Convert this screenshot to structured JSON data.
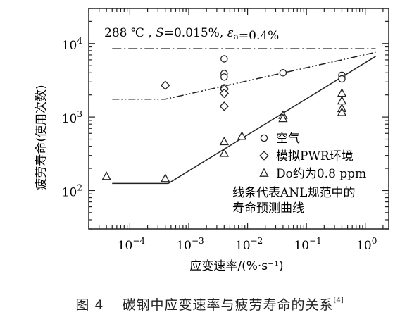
{
  "chart_data": {
    "type": "scatter",
    "annotation": "288 ℃ , S=0.015%, εa=0.4%",
    "xlabel": "应变速率/(%·s⁻¹)",
    "ylabel": "疲劳寿命(使用次数)",
    "x_scale": "log",
    "y_scale": "log",
    "xlim": [
      2e-05,
      2.5
    ],
    "ylim": [
      30,
      30000
    ],
    "x_ticks": [
      {
        "value": 0.0001,
        "base": "10",
        "exp": "−4"
      },
      {
        "value": 0.001,
        "base": "10",
        "exp": "−3"
      },
      {
        "value": 0.01,
        "base": "10",
        "exp": "−2"
      },
      {
        "value": 0.1,
        "base": "10",
        "exp": "−1"
      },
      {
        "value": 1,
        "base": "10",
        "exp": "0"
      }
    ],
    "y_ticks": [
      {
        "value": 100,
        "base": "10",
        "exp": "2"
      },
      {
        "value": 1000,
        "base": "10",
        "exp": "3"
      },
      {
        "value": 10000,
        "base": "10",
        "exp": "4"
      }
    ],
    "series": [
      {
        "name": "空气",
        "marker": "circle",
        "points": [
          [
            0.004,
            6200
          ],
          [
            0.004,
            3900
          ],
          [
            0.004,
            3500
          ],
          [
            0.004,
            2500
          ],
          [
            0.04,
            4000
          ],
          [
            0.4,
            3700
          ],
          [
            0.4,
            3300
          ]
        ]
      },
      {
        "name": "模拟PWR环境",
        "marker": "diamond",
        "points": [
          [
            0.0004,
            2700
          ],
          [
            0.004,
            2400
          ],
          [
            0.004,
            2100
          ],
          [
            0.004,
            1400
          ]
        ]
      },
      {
        "name": "Do约为0.8 ppm",
        "marker": "triangle",
        "points": [
          [
            4e-05,
            155
          ],
          [
            0.0004,
            145
          ],
          [
            0.004,
            460
          ],
          [
            0.004,
            320
          ],
          [
            0.008,
            545
          ],
          [
            0.04,
            1050
          ],
          [
            0.04,
            950
          ],
          [
            0.4,
            2100
          ],
          [
            0.4,
            1650
          ],
          [
            0.4,
            1300
          ],
          [
            0.4,
            1150
          ]
        ]
      }
    ],
    "curves": [
      {
        "style": "dashdot",
        "points": [
          [
            5e-05,
            8500
          ],
          [
            1.5,
            8500
          ]
        ]
      },
      {
        "style": "dashdotdot",
        "points": [
          [
            5e-05,
            1750
          ],
          [
            0.0004,
            1750
          ],
          [
            1.5,
            7600
          ]
        ]
      },
      {
        "style": "solid",
        "points": [
          [
            5e-05,
            125
          ],
          [
            0.00045,
            125
          ],
          [
            1.5,
            6700
          ]
        ]
      }
    ],
    "legend_note": [
      "线条代表ANL规范中的",
      "寿命预测曲线"
    ]
  },
  "caption": {
    "figure_label": "图 4",
    "text": "碳钢中应变速率与疲劳寿命的关系",
    "ref": "[4]"
  }
}
